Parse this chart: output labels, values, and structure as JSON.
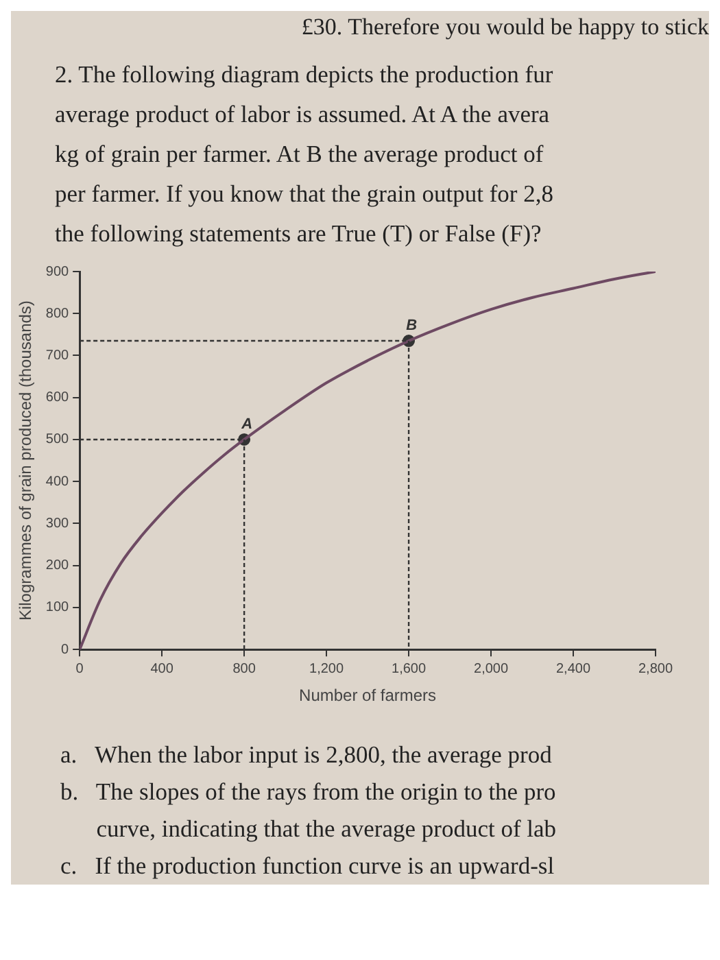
{
  "chart_data": {
    "type": "line",
    "subtitle": "£30. Therefore you would be happy to stick",
    "title": "2. The following diagram depicts the production fur\naverage product of labor is assumed. At A the avera\nkg of grain per farmer. At B the average product of\nper farmer. If you know that the grain output for 2,8\nthe following statements are True (T) or False (F)?",
    "xlabel": "Number of farmers",
    "ylabel": "Kilogrammes of grain produced (thousands)",
    "series": [
      {
        "color": "#6e4a63",
        "marker": "none",
        "x": [
          0,
          100,
          200,
          300,
          400,
          500,
          600,
          700,
          800,
          1000,
          1200,
          1400,
          1600,
          1800,
          2000,
          2200,
          2400,
          2600,
          2800
        ],
        "values": [
          0,
          118,
          205,
          270,
          325,
          375,
          420,
          462,
          500,
          570,
          635,
          688,
          735,
          775,
          810,
          838,
          860,
          882,
          900
        ]
      },
      {
        "type": "scatter",
        "color": "#333333",
        "marker": "circle",
        "x": [
          800,
          1600
        ],
        "values": [
          500,
          735
        ]
      }
    ],
    "xlim": [
      0,
      2800
    ],
    "xticks": [
      0,
      400,
      800,
      {
        "value": 1200,
        "label": "1,200"
      },
      {
        "value": 1600,
        "label": "1,600"
      },
      {
        "value": 2000,
        "label": "2,000"
      },
      {
        "value": 2400,
        "label": "2,400"
      },
      {
        "value": 2800,
        "label": "2,800"
      }
    ],
    "ylim": [
      0,
      900
    ],
    "yticks": [
      0,
      100,
      200,
      300,
      400,
      500,
      600,
      700,
      800,
      900
    ],
    "legend": false,
    "annotations": [
      {
        "text": "A",
        "x": 800,
        "y": 500
      },
      {
        "text": "B",
        "x": 1600,
        "y": 735
      },
      "a.   When the labor input is 2,800, the average prod",
      "b.   The slopes of the rays from the origin to the pro",
      "      curve, indicating that the average product of lab",
      "c.   If the production function curve is an upward-sl"
    ]
  }
}
